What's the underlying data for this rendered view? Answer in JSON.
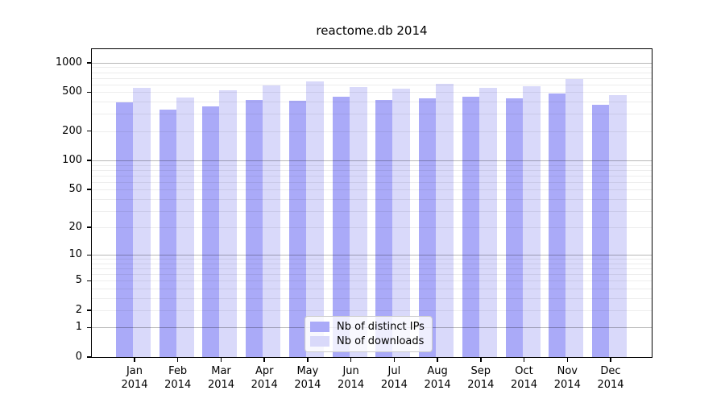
{
  "figure": {
    "background": "#ffffff"
  },
  "chart_data": {
    "type": "bar",
    "title": "reactome.db 2014",
    "categories": [
      "Jan 2014",
      "Feb 2014",
      "Mar 2014",
      "Apr 2014",
      "May 2014",
      "Jun 2014",
      "Jul 2014",
      "Aug 2014",
      "Sep 2014",
      "Oct 2014",
      "Nov 2014",
      "Dec 2014"
    ],
    "series": [
      {
        "name": "Nb of distinct IPs",
        "color": "#aaaaf8",
        "values": [
          395,
          330,
          360,
          420,
          410,
          450,
          420,
          430,
          450,
          430,
          490,
          375
        ]
      },
      {
        "name": "Nb of downloads",
        "color": "#d9d9fa",
        "values": [
          555,
          440,
          525,
          590,
          650,
          565,
          540,
          610,
          555,
          580,
          685,
          470
        ]
      }
    ],
    "xlabel": "",
    "ylabel": "",
    "yscale": "log1p",
    "ylim": [
      0,
      1350
    ],
    "yticks": [
      0,
      1,
      2,
      5,
      10,
      20,
      50,
      100,
      200,
      500,
      1000
    ],
    "grid": {
      "on": true,
      "drawn_over_bars": true,
      "major": [
        1,
        10,
        100,
        1000
      ],
      "minor": [
        2,
        3,
        4,
        5,
        6,
        7,
        8,
        9,
        20,
        30,
        40,
        50,
        60,
        70,
        80,
        90,
        200,
        300,
        400,
        500,
        600,
        700,
        800,
        900
      ],
      "major_color": "rgba(0,0,0,0.28)",
      "minor_color": "rgba(0,0,0,0.07)"
    },
    "legend": {
      "position": "lower center",
      "entries": [
        "Nb of distinct IPs",
        "Nb of downloads"
      ]
    }
  }
}
